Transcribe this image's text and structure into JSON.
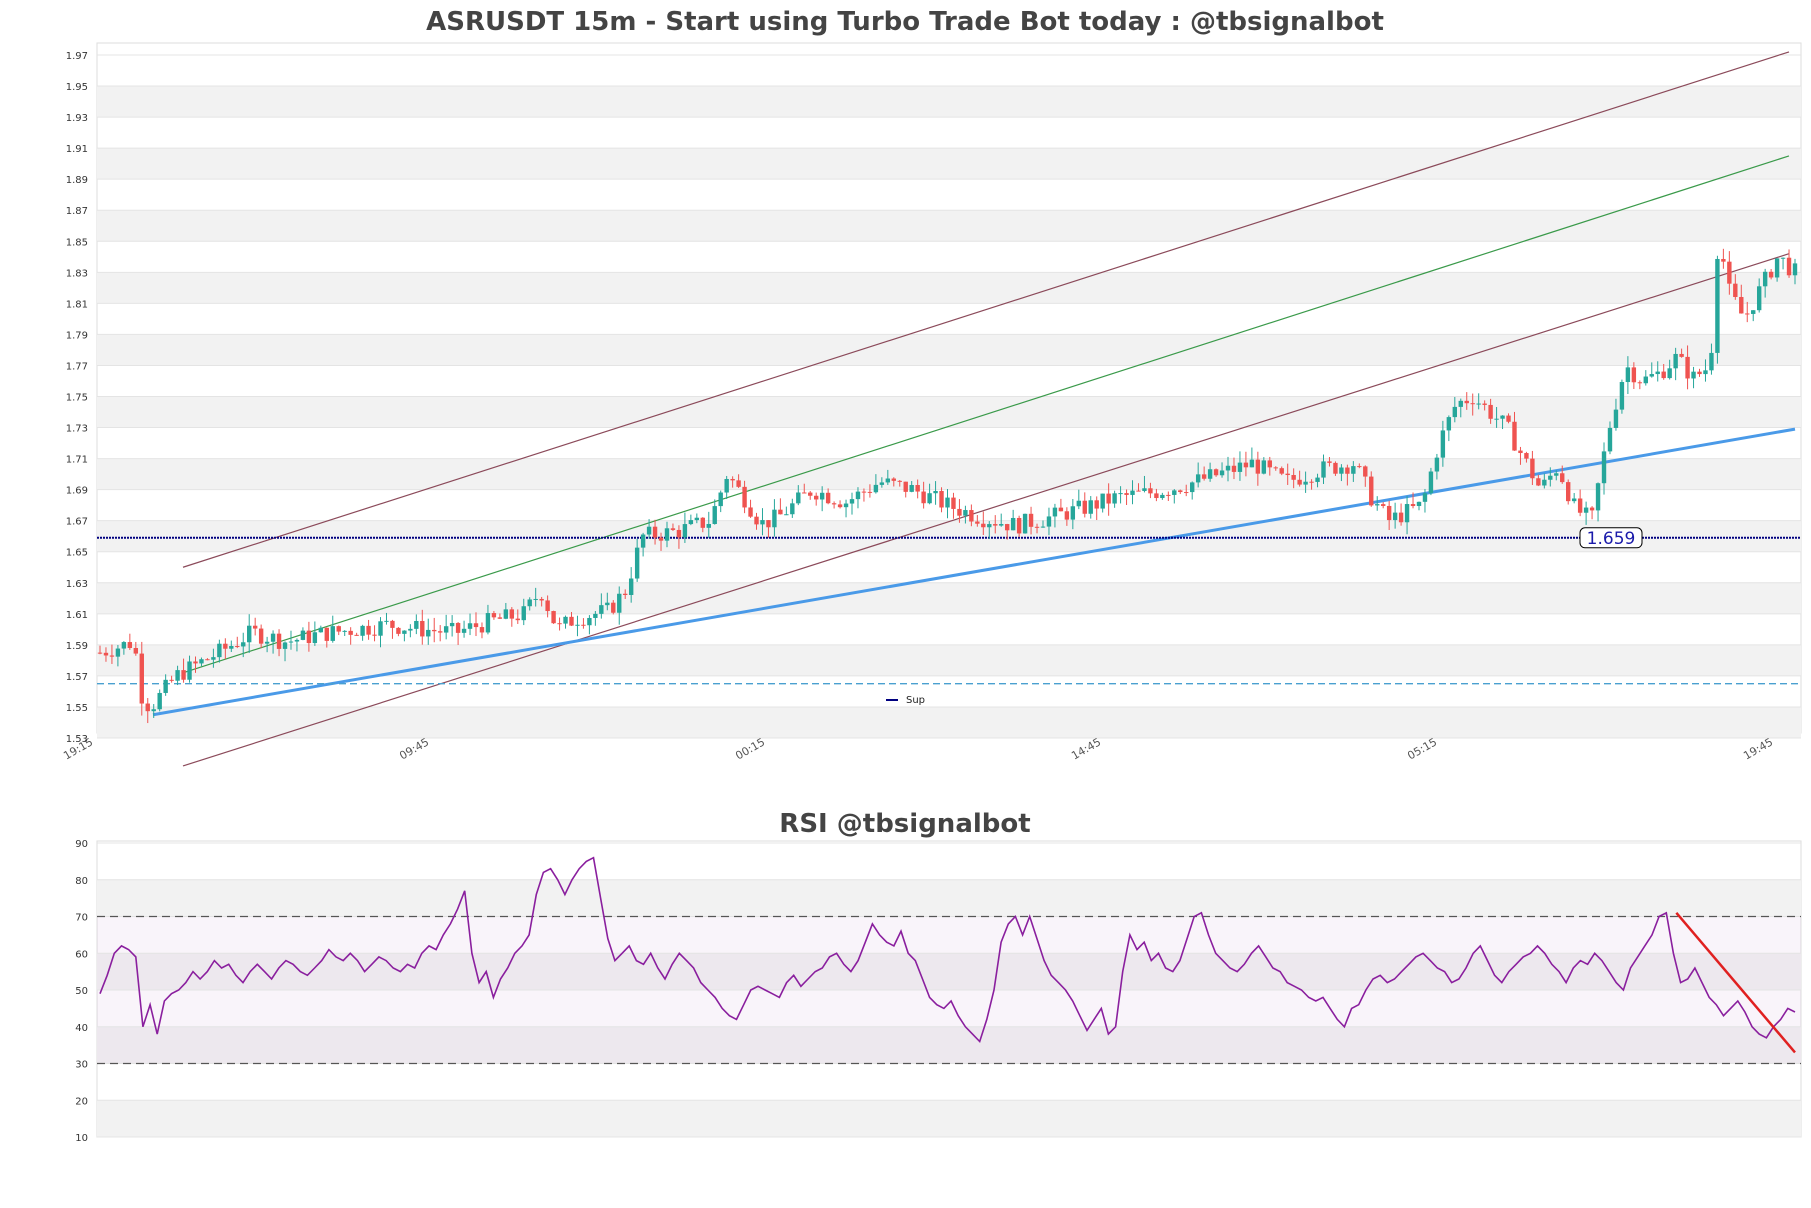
{
  "chart_data": [
    {
      "type": "candlestick",
      "title": "ASRUSDT 15m - Start using Turbo Trade Bot today : @tbsignalbot",
      "ylim": [
        1.53,
        1.97
      ],
      "y_ticks": [
        "1.53",
        "1.55",
        "1.57",
        "1.59",
        "1.61",
        "1.63",
        "1.65",
        "1.67",
        "1.69",
        "1.71",
        "1.73",
        "1.75",
        "1.77",
        "1.79",
        "1.81",
        "1.83",
        "1.85",
        "1.87",
        "1.89",
        "1.91",
        "1.93",
        "1.95",
        "1.97"
      ],
      "x_ticks": [
        "19:15",
        "09:45",
        "00:15",
        "14:45",
        "05:15",
        "19:45"
      ],
      "colors": {
        "up": "#26a69a",
        "down": "#ef5350",
        "channel": "#8b4a5a",
        "mid": "#3a9a4a",
        "trend": "#4a9ae8",
        "sup": "#000080",
        "dashed": "#4aa0d0"
      },
      "grid": true,
      "series": [
        {
          "name": "Sup",
          "type": "hline",
          "value": 1.659
        },
        {
          "type": "hline",
          "value": 1.565,
          "style": "dashed"
        }
      ],
      "price_label": "1.659",
      "legend": {
        "entries": [
          "Sup"
        ],
        "placement": "bottom-center"
      },
      "trend_line": {
        "from": [
          0,
          1.545
        ],
        "to": [
          1,
          1.729
        ]
      },
      "channel": {
        "upper": {
          "from": [
            0,
            1.64
          ],
          "to": [
            1,
            1.972
          ]
        },
        "mid": {
          "from": [
            0,
            1.572
          ],
          "to": [
            1,
            1.905
          ]
        },
        "lower": {
          "from": [
            0,
            1.512
          ],
          "to": [
            1,
            1.842
          ]
        }
      },
      "path_points": [
        [
          0.0,
          1.585
        ],
        [
          0.02,
          1.592
        ],
        [
          0.025,
          1.555
        ],
        [
          0.03,
          1.55
        ],
        [
          0.045,
          1.57
        ],
        [
          0.07,
          1.585
        ],
        [
          0.09,
          1.598
        ],
        [
          0.11,
          1.592
        ],
        [
          0.13,
          1.597
        ],
        [
          0.15,
          1.6
        ],
        [
          0.17,
          1.603
        ],
        [
          0.19,
          1.6
        ],
        [
          0.21,
          1.598
        ],
        [
          0.23,
          1.605
        ],
        [
          0.25,
          1.61
        ],
        [
          0.26,
          1.625
        ],
        [
          0.27,
          1.6
        ],
        [
          0.28,
          1.607
        ],
        [
          0.3,
          1.612
        ],
        [
          0.31,
          1.625
        ],
        [
          0.32,
          1.66
        ],
        [
          0.34,
          1.663
        ],
        [
          0.36,
          1.67
        ],
        [
          0.37,
          1.7
        ],
        [
          0.38,
          1.685
        ],
        [
          0.39,
          1.668
        ],
        [
          0.4,
          1.672
        ],
        [
          0.42,
          1.69
        ],
        [
          0.44,
          1.682
        ],
        [
          0.46,
          1.695
        ],
        [
          0.48,
          1.69
        ],
        [
          0.5,
          1.68
        ],
        [
          0.52,
          1.672
        ],
        [
          0.54,
          1.667
        ],
        [
          0.56,
          1.672
        ],
        [
          0.58,
          1.678
        ],
        [
          0.6,
          1.685
        ],
        [
          0.62,
          1.688
        ],
        [
          0.64,
          1.693
        ],
        [
          0.66,
          1.7
        ],
        [
          0.68,
          1.707
        ],
        [
          0.7,
          1.695
        ],
        [
          0.72,
          1.703
        ],
        [
          0.74,
          1.707
        ],
        [
          0.75,
          1.685
        ],
        [
          0.76,
          1.67
        ],
        [
          0.78,
          1.68
        ],
        [
          0.79,
          1.72
        ],
        [
          0.8,
          1.745
        ],
        [
          0.81,
          1.75
        ],
        [
          0.82,
          1.74
        ],
        [
          0.83,
          1.73
        ],
        [
          0.84,
          1.71
        ],
        [
          0.85,
          1.69
        ],
        [
          0.86,
          1.705
        ],
        [
          0.87,
          1.678
        ],
        [
          0.88,
          1.67
        ],
        [
          0.89,
          1.728
        ],
        [
          0.9,
          1.77
        ],
        [
          0.91,
          1.76
        ],
        [
          0.92,
          1.765
        ],
        [
          0.93,
          1.775
        ],
        [
          0.94,
          1.762
        ],
        [
          0.95,
          1.77
        ],
        [
          0.955,
          1.858
        ],
        [
          0.96,
          1.82
        ],
        [
          0.97,
          1.8
        ],
        [
          0.98,
          1.82
        ],
        [
          0.99,
          1.84
        ],
        [
          1.0,
          1.83
        ]
      ]
    },
    {
      "type": "line",
      "title": "RSI @tbsignalbot",
      "ylim": [
        10,
        90
      ],
      "y_ticks": [
        "10",
        "20",
        "30",
        "40",
        "50",
        "60",
        "70",
        "80",
        "90"
      ],
      "levels": [
        30,
        70
      ],
      "series": [
        {
          "values": [
            49,
            54,
            60,
            62,
            61,
            59,
            40,
            46,
            38,
            47,
            49,
            50,
            52,
            55,
            53,
            55,
            58,
            56,
            57,
            54,
            52,
            55,
            57,
            55,
            53,
            56,
            58,
            57,
            55,
            54,
            56,
            58,
            61,
            59,
            58,
            60,
            58,
            55,
            57,
            59,
            58,
            56,
            55,
            57,
            56,
            60,
            62,
            61,
            65,
            68,
            72,
            77,
            60,
            52,
            55,
            48,
            53,
            56,
            60,
            62,
            65,
            76,
            82,
            83,
            80,
            76,
            80,
            83,
            85,
            86,
            75,
            64,
            58,
            60,
            62,
            58,
            57,
            60,
            56,
            53,
            57,
            60,
            58,
            56,
            52,
            50,
            48,
            45,
            43,
            42,
            46,
            50,
            51,
            50,
            49,
            48,
            52,
            54,
            51,
            53,
            55,
            56,
            59,
            60,
            57,
            55,
            58,
            63,
            68,
            65,
            63,
            62,
            66,
            60,
            58,
            53,
            48,
            46,
            45,
            47,
            43,
            40,
            38,
            36,
            42,
            50,
            63,
            68,
            70,
            65,
            70,
            64,
            58,
            54,
            52,
            50,
            47,
            43,
            39,
            42,
            45,
            38,
            40,
            55,
            65,
            61,
            63,
            58,
            60,
            56,
            55,
            58,
            64,
            70,
            71,
            65,
            60,
            58,
            56,
            55,
            57,
            60,
            62,
            59,
            56,
            55,
            52,
            51,
            50,
            48,
            47,
            48,
            45,
            42,
            40,
            45,
            46,
            50,
            53,
            54,
            52,
            53,
            55,
            57,
            59,
            60,
            58,
            56,
            55,
            52,
            53,
            56,
            60,
            62,
            58,
            54,
            52,
            55,
            57,
            59,
            60,
            62,
            60,
            57,
            55,
            52,
            56,
            58,
            57,
            60,
            58,
            55,
            52,
            50,
            56,
            59,
            62,
            65,
            70,
            71,
            60,
            52,
            53,
            56,
            52,
            48,
            46,
            43,
            45,
            47,
            44,
            40,
            38,
            37,
            40,
            42,
            45,
            44
          ]
        }
      ],
      "trend_line": {
        "from": [
          0.93,
          71
        ],
        "to": [
          1.0,
          33
        ]
      },
      "colors": {
        "rsi": "#8a1f9e",
        "trend": "#e02020",
        "level": "#555555"
      }
    }
  ]
}
